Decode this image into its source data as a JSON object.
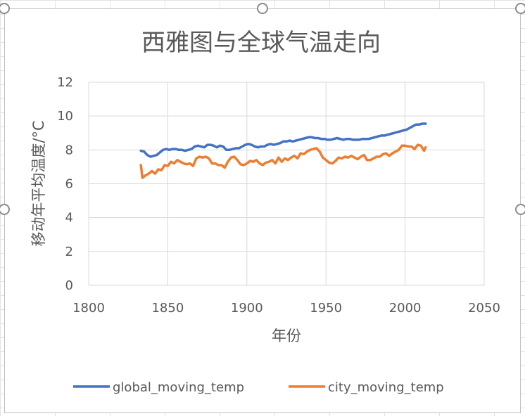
{
  "chart_data": {
    "type": "line",
    "title": "西雅图与全球气温走向",
    "xlabel": "年份",
    "ylabel": "移动年平均温度/°C",
    "xlim": [
      1800,
      2050
    ],
    "ylim": [
      0,
      12
    ],
    "xticks": [
      1800,
      1850,
      1900,
      1950,
      2000,
      2050
    ],
    "yticks": [
      0,
      2,
      4,
      6,
      8,
      10,
      12
    ],
    "grid": true,
    "legend": "bottom",
    "series": [
      {
        "name": "global_moving_temp",
        "color": "#4472c4",
        "x": [
          1833,
          1835,
          1837,
          1839,
          1841,
          1843,
          1845,
          1847,
          1849,
          1851,
          1853,
          1855,
          1857,
          1859,
          1861,
          1863,
          1865,
          1867,
          1869,
          1871,
          1873,
          1875,
          1877,
          1879,
          1881,
          1883,
          1885,
          1887,
          1889,
          1891,
          1893,
          1895,
          1897,
          1899,
          1901,
          1903,
          1905,
          1907,
          1909,
          1911,
          1913,
          1915,
          1917,
          1919,
          1921,
          1923,
          1925,
          1927,
          1929,
          1931,
          1933,
          1935,
          1937,
          1939,
          1941,
          1943,
          1945,
          1947,
          1949,
          1951,
          1953,
          1955,
          1957,
          1959,
          1961,
          1963,
          1965,
          1967,
          1969,
          1971,
          1973,
          1975,
          1977,
          1979,
          1981,
          1983,
          1985,
          1987,
          1989,
          1991,
          1993,
          1995,
          1997,
          1999,
          2001,
          2003,
          2005,
          2007,
          2009,
          2011,
          2013
        ],
        "values": [
          7.95,
          7.9,
          7.7,
          7.6,
          7.65,
          7.7,
          7.85,
          8.0,
          8.05,
          8.0,
          8.05,
          8.05,
          8.0,
          8.0,
          7.95,
          8.0,
          8.05,
          8.2,
          8.25,
          8.2,
          8.15,
          8.3,
          8.3,
          8.25,
          8.15,
          8.25,
          8.2,
          8.0,
          8.0,
          8.05,
          8.1,
          8.1,
          8.2,
          8.3,
          8.35,
          8.3,
          8.2,
          8.15,
          8.2,
          8.2,
          8.3,
          8.35,
          8.3,
          8.35,
          8.4,
          8.5,
          8.5,
          8.55,
          8.5,
          8.55,
          8.6,
          8.65,
          8.7,
          8.75,
          8.75,
          8.7,
          8.7,
          8.65,
          8.65,
          8.6,
          8.6,
          8.65,
          8.7,
          8.65,
          8.6,
          8.65,
          8.65,
          8.6,
          8.6,
          8.6,
          8.65,
          8.65,
          8.65,
          8.7,
          8.75,
          8.8,
          8.85,
          8.85,
          8.9,
          8.95,
          9.0,
          9.05,
          9.1,
          9.15,
          9.2,
          9.3,
          9.4,
          9.5,
          9.5,
          9.55,
          9.55
        ]
      },
      {
        "name": "city_moving_temp",
        "color": "#ed7d31",
        "x": [
          1833,
          1834,
          1836,
          1838,
          1840,
          1842,
          1844,
          1846,
          1848,
          1850,
          1852,
          1854,
          1856,
          1858,
          1860,
          1862,
          1864,
          1866,
          1868,
          1870,
          1872,
          1874,
          1876,
          1878,
          1880,
          1882,
          1884,
          1886,
          1888,
          1890,
          1892,
          1894,
          1896,
          1898,
          1900,
          1902,
          1904,
          1906,
          1908,
          1910,
          1912,
          1914,
          1916,
          1918,
          1920,
          1922,
          1924,
          1926,
          1928,
          1930,
          1932,
          1934,
          1936,
          1938,
          1940,
          1942,
          1944,
          1946,
          1948,
          1950,
          1952,
          1954,
          1956,
          1958,
          1960,
          1962,
          1964,
          1966,
          1968,
          1970,
          1972,
          1974,
          1976,
          1978,
          1980,
          1982,
          1984,
          1986,
          1988,
          1990,
          1992,
          1994,
          1996,
          1998,
          2000,
          2002,
          2004,
          2006,
          2008,
          2010,
          2011,
          2012,
          2013
        ],
        "values": [
          7.1,
          6.35,
          6.5,
          6.6,
          6.75,
          6.6,
          6.85,
          6.8,
          7.1,
          7.05,
          7.3,
          7.2,
          7.4,
          7.3,
          7.2,
          7.15,
          7.2,
          7.05,
          7.5,
          7.6,
          7.55,
          7.6,
          7.5,
          7.2,
          7.2,
          7.1,
          7.1,
          6.95,
          7.3,
          7.55,
          7.6,
          7.4,
          7.15,
          7.1,
          7.2,
          7.35,
          7.3,
          7.4,
          7.2,
          7.1,
          7.25,
          7.3,
          7.4,
          7.2,
          7.55,
          7.3,
          7.5,
          7.4,
          7.55,
          7.65,
          7.5,
          7.8,
          7.75,
          7.9,
          8.0,
          8.05,
          8.1,
          7.9,
          7.55,
          7.4,
          7.25,
          7.2,
          7.35,
          7.55,
          7.5,
          7.6,
          7.55,
          7.65,
          7.55,
          7.45,
          7.6,
          7.7,
          7.4,
          7.4,
          7.5,
          7.6,
          7.6,
          7.75,
          7.8,
          7.65,
          7.8,
          7.9,
          8.0,
          8.25,
          8.25,
          8.2,
          8.2,
          8.05,
          8.3,
          8.25,
          8.1,
          7.95,
          8.15
        ]
      }
    ]
  }
}
